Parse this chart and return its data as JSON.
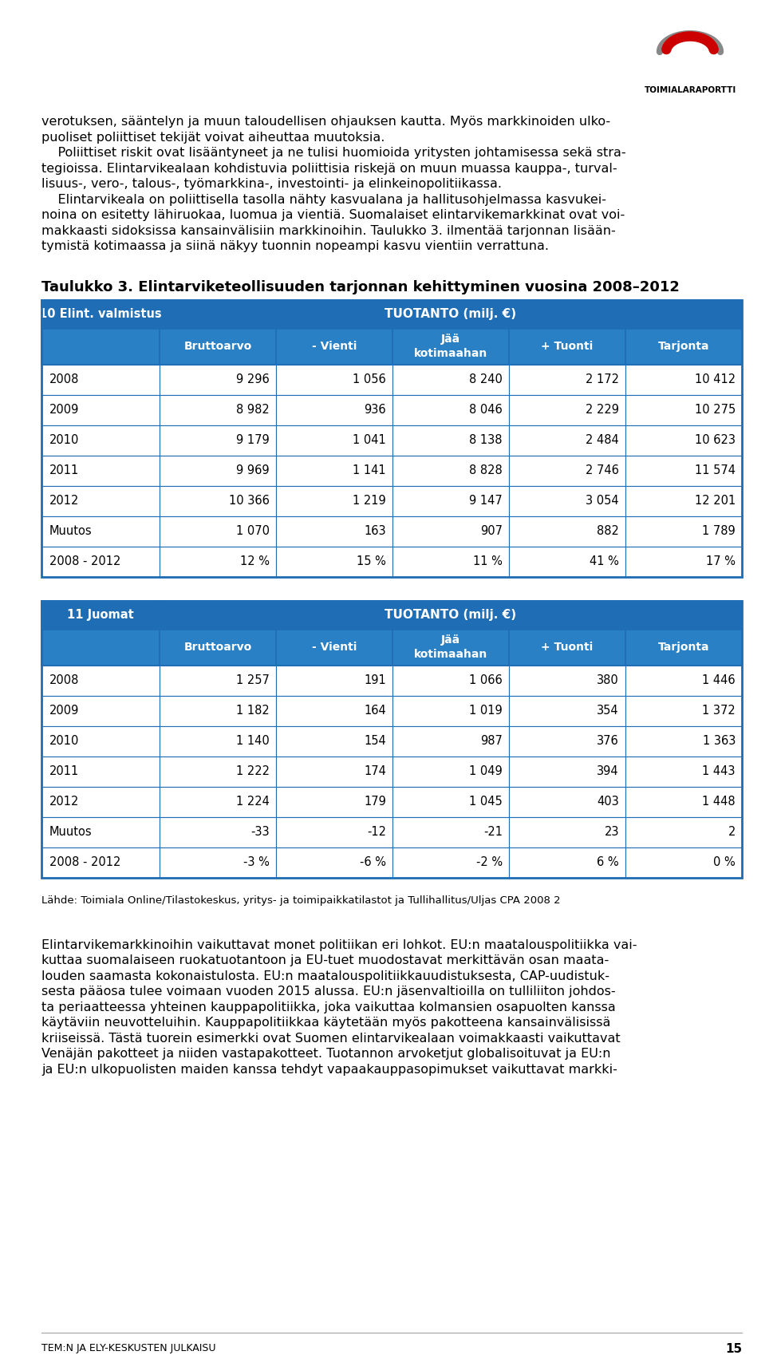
{
  "page_bg": "#ffffff",
  "text_color": "#000000",
  "header_bg": "#1f6db5",
  "header_text": "#ffffff",
  "subheader_bg": "#2980c4",
  "table_border": "#1f6db5",
  "row_bg_white": "#ffffff",
  "logo_arc_red": "#cc0000",
  "logo_arc_gray": "#888888",
  "logo_text": "TOIMIALARAPORTTI",
  "top_text_lines": [
    "verotuksen, sääntelyn ja muun taloudellisen ohjauksen kautta. Myös markkinoiden ulko-",
    "puoliset poliittiset tekijät voivat aiheuttaa muutoksia.",
    "    Poliittiset riskit ovat lisääntyneet ja ne tulisi huomioida yritysten johtamisessa sekä stra-",
    "tegioissa. Elintarvikealaan kohdistuvia poliittisia riskejä on muun muassa kauppa-, turval-",
    "lisuus-, vero-, talous-, työmarkkina-, investointi- ja elinkeinopolitiikassa.",
    "    Elintarvikeala on poliittisella tasolla nähty kasvualana ja hallitusohjelmassa kasvukei-",
    "noina on esitetty lähiruokaa, luomua ja vientiä. Suomalaiset elintarvikemarkkinat ovat voi-",
    "makkaasti sidoksissa kansainvälisiin markkinoihin. Taulukko 3. ilmentää tarjonnan lisään-",
    "tymistä kotimaassa ja siinä näkyy tuonnin nopeampi kasvu vientiin verrattuna."
  ],
  "table_title": "Taulukko 3. Elintarviketeollisuuden tarjonnan kehittyminen vuosina 2008–2012",
  "table1_header1": "10 Elint. valmistus",
  "table1_header2": "TUOTANTO (milj. €)",
  "table1_subheaders": [
    "Bruttoarvo",
    "- Vienti",
    "Jää\nkotimaahan",
    "+ Tuonti",
    "Tarjonta"
  ],
  "table1_rows": [
    [
      "2008",
      "9 296",
      "1 056",
      "8 240",
      "2 172",
      "10 412"
    ],
    [
      "2009",
      "8 982",
      "936",
      "8 046",
      "2 229",
      "10 275"
    ],
    [
      "2010",
      "9 179",
      "1 041",
      "8 138",
      "2 484",
      "10 623"
    ],
    [
      "2011",
      "9 969",
      "1 141",
      "8 828",
      "2 746",
      "11 574"
    ],
    [
      "2012",
      "10 366",
      "1 219",
      "9 147",
      "3 054",
      "12 201"
    ],
    [
      "Muutos",
      "1 070",
      "163",
      "907",
      "882",
      "1 789"
    ],
    [
      "2008 - 2012",
      "12 %",
      "15 %",
      "11 %",
      "41 %",
      "17 %"
    ]
  ],
  "table2_header1": "11 Juomat",
  "table2_header2": "TUOTANTO (milj. €)",
  "table2_subheaders": [
    "Bruttoarvo",
    "- Vienti",
    "Jää\nkotimaahan",
    "+ Tuonti",
    "Tarjonta"
  ],
  "table2_rows": [
    [
      "2008",
      "1 257",
      "191",
      "1 066",
      "380",
      "1 446"
    ],
    [
      "2009",
      "1 182",
      "164",
      "1 019",
      "354",
      "1 372"
    ],
    [
      "2010",
      "1 140",
      "154",
      "987",
      "376",
      "1 363"
    ],
    [
      "2011",
      "1 222",
      "174",
      "1 049",
      "394",
      "1 443"
    ],
    [
      "2012",
      "1 224",
      "179",
      "1 045",
      "403",
      "1 448"
    ],
    [
      "Muutos",
      "-33",
      "-12",
      "-21",
      "23",
      "2"
    ],
    [
      "2008 - 2012",
      "-3 %",
      "-6 %",
      "-2 %",
      "6 %",
      "0 %"
    ]
  ],
  "source_text": "Lähde: Toimiala Online/Tilastokeskus, yritys- ja toimipaikkatilastot ja Tullihallitus/Uljas CPA 2008 2",
  "bottom_text_lines": [
    "Elintarvikemarkkinoihin vaikuttavat monet politiikan eri lohkot. EU:n maatalouspolitiikka vai-",
    "kuttaa suomalaiseen ruokatuotantoon ja EU-tuet muodostavat merkittävän osan maata-",
    "louden saamasta kokonaistulosta. EU:n maatalouspolitiikkauudistuksesta, CAP-uudistuk-",
    "sesta pääosa tulee voimaan vuoden 2015 alussa. EU:n jäsenvaltioilla on tulliliiton johdos-",
    "ta periaatteessa yhteinen kauppapolitiikka, joka vaikuttaa kolmansien osapuolten kanssa",
    "käytäviin neuvotteluihin. Kauppapolitiikkaa käytetään myös pakotteena kansainvälisissä",
    "kriiseissä. Tästä tuorein esimerkki ovat Suomen elintarvikealaan voimakkaasti vaikuttavat",
    "Venäjän pakotteet ja niiden vastapakotteet. Tuotannon arvoketjut globalisoituvat ja EU:n",
    "ja EU:n ulkopuolisten maiden kanssa tehdyt vapaakauppasopimukset vaikuttavat markki-"
  ],
  "footer_text": "TEM:N JA ELY-KESKUSTEN JULKAISU",
  "footer_page": "15"
}
